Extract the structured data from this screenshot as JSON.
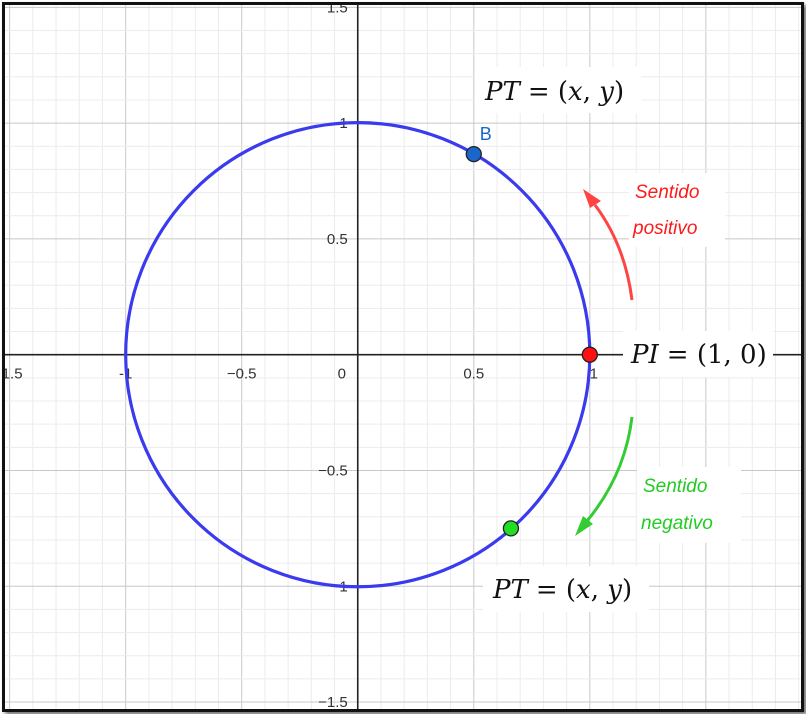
{
  "axes": {
    "x_ticks": [
      "-1.5",
      "-1",
      "−0.5",
      "0",
      "0.5",
      "1"
    ],
    "y_ticks": [
      "1.5",
      "1",
      "0.5",
      "−0.5",
      "−1",
      "−1.5"
    ],
    "xlim": [
      -1.52,
      1.91
    ],
    "ylim": [
      -1.53,
      1.51
    ]
  },
  "circle": {
    "center": [
      0,
      0
    ],
    "radius": 1,
    "color": "#3a3aee"
  },
  "points": [
    {
      "label": "B",
      "x": 0.5,
      "y": 0.866,
      "color": "#1a66cc"
    },
    {
      "label": "",
      "x": 1,
      "y": 0,
      "color": "#ff1111"
    },
    {
      "label": "",
      "x": 0.66,
      "y": -0.75,
      "color": "#22dd22"
    }
  ],
  "annotations": {
    "pt_top": {
      "lhs": "PT",
      "rhs_open": "= (",
      "x": "x",
      "comma": ", ",
      "y": "y",
      "rhs_close": ")"
    },
    "pt_bottom": {
      "lhs": "PT",
      "rhs_open": "= (",
      "x": "x",
      "comma": ", ",
      "y": "y",
      "rhs_close": ")"
    },
    "pi": {
      "lhs": "PI",
      "rhs": "= (1, 0)"
    }
  },
  "directions": {
    "positive_line1": "Sentido",
    "positive_line2": "positivo",
    "positive_color": "#ff4444",
    "negative_line1": "Sentido",
    "negative_line2": "negativo",
    "negative_color": "#33cc33"
  }
}
